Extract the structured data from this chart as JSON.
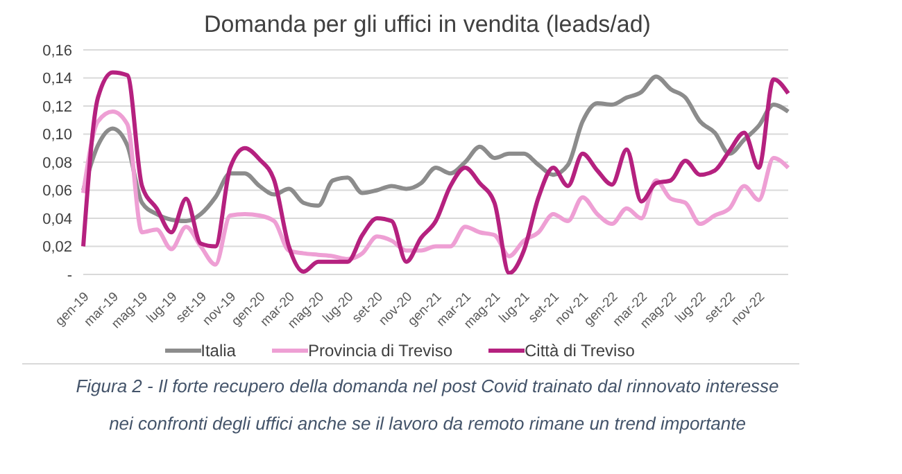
{
  "chart_data": {
    "type": "line",
    "title": "Domanda per gli uffici in vendita (leads/ad)",
    "categories": [
      "gen-19",
      null,
      "mar-19",
      null,
      "mag-19",
      null,
      "lug-19",
      null,
      "set-19",
      null,
      "nov-19",
      null,
      "gen-20",
      null,
      "mar-20",
      null,
      "mag-20",
      null,
      "lug-20",
      null,
      "set-20",
      null,
      "nov-20",
      null,
      "gen-21",
      null,
      "mar-21",
      null,
      "mag-21",
      null,
      "lug-21",
      null,
      "set-21",
      null,
      "nov-21",
      null,
      "gen-22",
      null,
      "mar-22",
      null,
      "mag-22",
      null,
      "lug-22",
      null,
      "set-22",
      null,
      "nov-22",
      null,
      null
    ],
    "series": [
      {
        "name": "Italia",
        "color": "#8c8c8c",
        "values": [
          0.06,
          0.092,
          0.104,
          0.092,
          0.051,
          0.043,
          0.039,
          0.038,
          0.043,
          0.055,
          0.072,
          0.072,
          0.063,
          0.057,
          0.061,
          0.051,
          0.049,
          0.067,
          0.069,
          0.058,
          0.06,
          0.063,
          0.061,
          0.065,
          0.076,
          0.072,
          0.08,
          0.091,
          0.083,
          0.086,
          0.086,
          0.078,
          0.071,
          0.078,
          0.109,
          0.122,
          0.121,
          0.126,
          0.13,
          0.141,
          0.132,
          0.126,
          0.109,
          0.101,
          0.086,
          0.096,
          0.106,
          0.121,
          0.116
        ]
      },
      {
        "name": "Provincia di Treviso",
        "color": "#ee9fd4",
        "values": [
          0.058,
          0.109,
          0.116,
          0.107,
          0.03,
          0.032,
          0.018,
          0.034,
          0.02,
          0.007,
          0.042,
          0.043,
          0.042,
          0.038,
          0.017,
          0.015,
          0.014,
          0.013,
          0.011,
          0.015,
          0.027,
          0.024,
          0.017,
          0.017,
          0.02,
          0.02,
          0.034,
          0.03,
          0.028,
          0.013,
          0.024,
          0.03,
          0.043,
          0.038,
          0.055,
          0.043,
          0.036,
          0.047,
          0.04,
          0.067,
          0.054,
          0.051,
          0.036,
          0.042,
          0.047,
          0.063,
          0.053,
          0.083,
          0.076
        ]
      },
      {
        "name": "Città di Treviso",
        "color": "#b5217f",
        "values": [
          0.02,
          0.126,
          0.144,
          0.142,
          0.063,
          0.047,
          0.03,
          0.054,
          0.022,
          0.02,
          0.076,
          0.09,
          0.082,
          0.067,
          0.02,
          0.002,
          0.009,
          0.009,
          0.009,
          0.028,
          0.04,
          0.038,
          0.009,
          0.026,
          0.038,
          0.063,
          0.076,
          0.065,
          0.051,
          0.001,
          0.017,
          0.055,
          0.076,
          0.063,
          0.086,
          0.074,
          0.064,
          0.089,
          0.052,
          0.065,
          0.067,
          0.081,
          0.071,
          0.074,
          0.088,
          0.101,
          0.076,
          0.139,
          0.129
        ]
      }
    ],
    "ylim": [
      0,
      0.16
    ],
    "yticks": [
      {
        "value": 0,
        "label": "-"
      },
      {
        "value": 0.02,
        "label": "0,02"
      },
      {
        "value": 0.04,
        "label": "0,04"
      },
      {
        "value": 0.06,
        "label": "0,06"
      },
      {
        "value": 0.08,
        "label": "0,08"
      },
      {
        "value": 0.1,
        "label": "0,10"
      },
      {
        "value": 0.12,
        "label": "0,12"
      },
      {
        "value": 0.14,
        "label": "0,14"
      },
      {
        "value": 0.16,
        "label": "0,16"
      }
    ],
    "grid": "y",
    "legend": "bottom",
    "marker": "none",
    "line_style": "solid",
    "annotations": [
      "Figura 2 - Il forte recupero della domanda nel post Covid trainato dal rinnovato interesse",
      "nei confronti degli uffici anche se il lavoro da remoto rimane un trend importante"
    ]
  }
}
